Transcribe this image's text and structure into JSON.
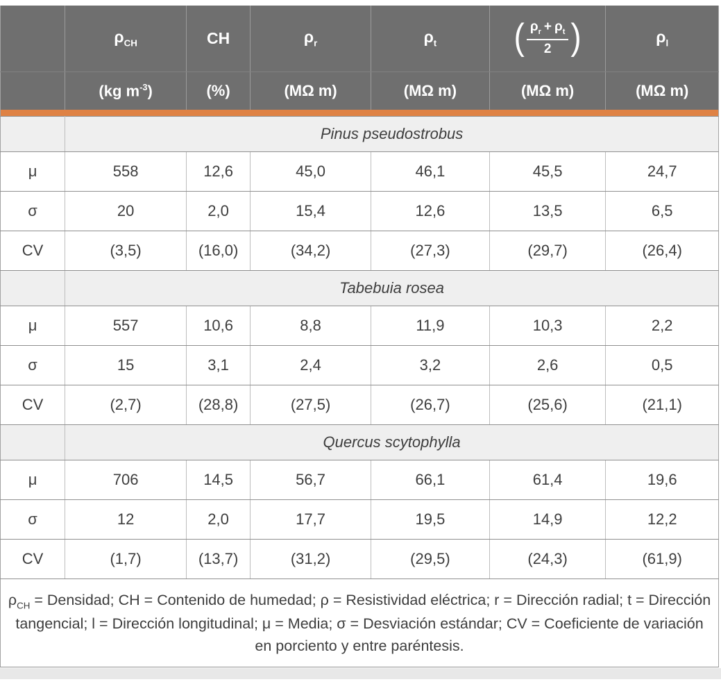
{
  "table": {
    "header": {
      "corner": "",
      "columns": {
        "rho_ch": {
          "base": "ρ",
          "sub": "CH"
        },
        "ch": "CH",
        "rho_r": {
          "base": "ρ",
          "sub": "r"
        },
        "rho_t": {
          "base": "ρ",
          "sub": "t"
        },
        "mean": {
          "open": "(",
          "base1": "ρ",
          "sub1": "r",
          "plus": "+",
          "base2": "ρ",
          "sub2": "t",
          "den": "2",
          "close": ")"
        },
        "rho_l": {
          "base": "ρ",
          "sub": "l"
        }
      },
      "units": {
        "rho_ch": {
          "pre": "(kg m",
          "sup": "-3",
          "post": ")"
        },
        "ch": "(%)",
        "mohm": "(MΩ m)"
      }
    },
    "sections": [
      {
        "species": "Pinus pseudostrobus",
        "rows": [
          {
            "label": "μ",
            "values": [
              "558",
              "12,6",
              "45,0",
              "46,1",
              "45,5",
              "24,7"
            ]
          },
          {
            "label": "σ",
            "values": [
              "20",
              "2,0",
              "15,4",
              "12,6",
              "13,5",
              "6,5"
            ]
          },
          {
            "label": "CV",
            "values": [
              "(3,5)",
              "(16,0)",
              "(34,2)",
              "(27,3)",
              "(29,7)",
              "(26,4)"
            ]
          }
        ]
      },
      {
        "species": "Tabebuia rosea",
        "rows": [
          {
            "label": "μ",
            "values": [
              "557",
              "10,6",
              "8,8",
              "11,9",
              "10,3",
              "2,2"
            ]
          },
          {
            "label": "σ",
            "values": [
              "15",
              "3,1",
              "2,4",
              "3,2",
              "2,6",
              "0,5"
            ]
          },
          {
            "label": "CV",
            "values": [
              "(2,7)",
              "(28,8)",
              "(27,5)",
              "(26,7)",
              "(25,6)",
              "(21,1)"
            ]
          }
        ]
      },
      {
        "species": "Quercus scytophylla",
        "rows": [
          {
            "label": "μ",
            "values": [
              "706",
              "14,5",
              "56,7",
              "66,1",
              "61,4",
              "19,6"
            ]
          },
          {
            "label": "σ",
            "values": [
              "12",
              "2,0",
              "17,7",
              "19,5",
              "14,9",
              "12,2"
            ]
          },
          {
            "label": "CV",
            "values": [
              "(1,7)",
              "(13,7)",
              "(31,2)",
              "(29,5)",
              "(24,3)",
              "(61,9)"
            ]
          }
        ]
      }
    ],
    "footnote": {
      "lead_base": "ρ",
      "lead_sub": "CH",
      "rest": " = Densidad; CH = Contenido de humedad; ρ = Resistividad eléctrica; r = Dirección radial; t = Dirección tangencial; l = Dirección longitudinal; μ = Media; σ = Desviación estándar; CV = Coeficiente de variación en porciento y entre paréntesis."
    }
  },
  "colors": {
    "header_bg": "#6F6F6F",
    "accent_orange": "#DF8244",
    "section_bg": "#EFEFEF",
    "page_bottom_strip": "#E8E8E8"
  }
}
